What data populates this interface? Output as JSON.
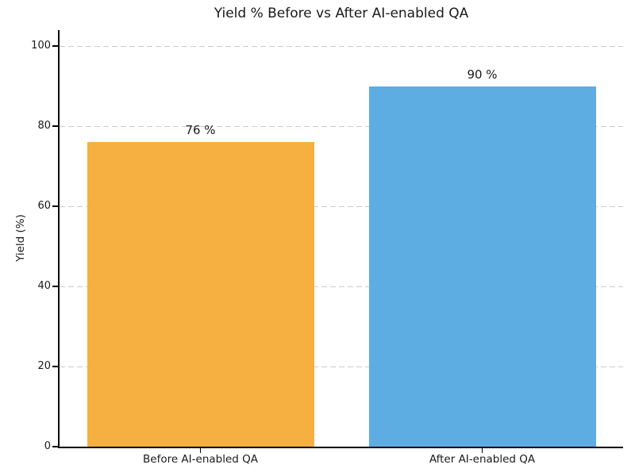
{
  "chart_data": {
    "type": "bar",
    "title": "Yield % Before vs After AI-enabled QA",
    "categories": [
      "Before AI-enabled QA",
      "After AI-enabled QA"
    ],
    "values": [
      76,
      90
    ],
    "value_labels": [
      "76 %",
      "90 %"
    ],
    "bar_colors": [
      "#F5B041",
      "#5DADE2"
    ],
    "xlabel": "",
    "ylabel": "Yield (%)",
    "ylim": [
      0,
      104
    ],
    "yticks": [
      0,
      20,
      40,
      60,
      80,
      100
    ],
    "ytick_labels": [
      "0",
      "20",
      "40",
      "60",
      "80",
      "100"
    ],
    "grid": "horizontal-dashed",
    "legend": "none"
  },
  "colors": {
    "background": "#ffffff",
    "text": "#1a1a1a",
    "grid": "#cbcbcb",
    "axis": "#000000",
    "bar_before": "#F5B041",
    "bar_after": "#5DADE2"
  }
}
